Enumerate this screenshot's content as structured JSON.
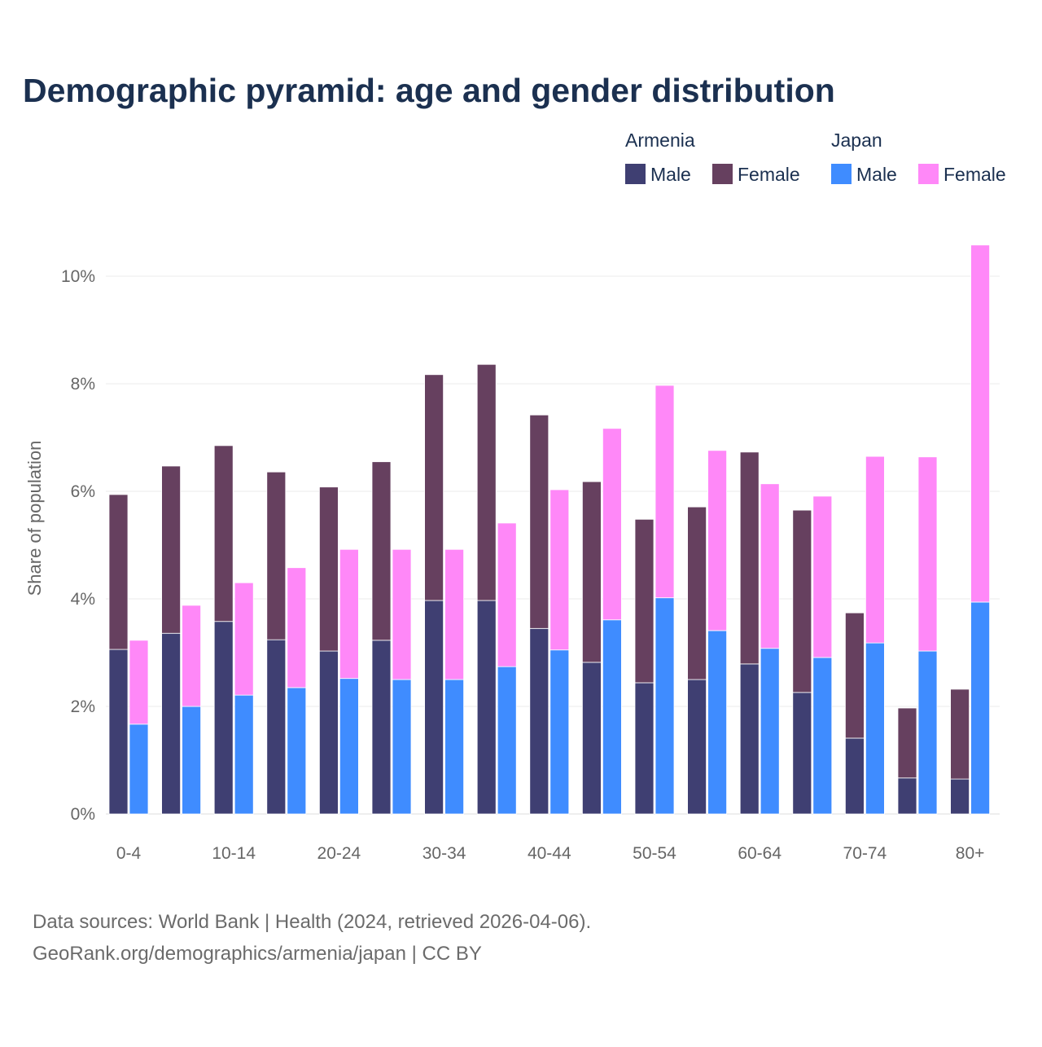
{
  "chart_data": {
    "type": "bar",
    "stacked": true,
    "grouped": true,
    "title": "Demographic pyramid: age and gender distribution",
    "ylabel": "Share of population",
    "xlabel": "",
    "ylim": [
      0,
      10.6
    ],
    "yticks": [
      0,
      2,
      4,
      6,
      8,
      10
    ],
    "ytick_labels": [
      "0%",
      "2%",
      "4%",
      "6%",
      "8%",
      "10%"
    ],
    "grid": true,
    "legend_placement": "top-right",
    "categories": [
      "0-4",
      "5-9",
      "10-14",
      "15-19",
      "20-24",
      "25-29",
      "30-34",
      "35-39",
      "40-44",
      "45-49",
      "50-54",
      "55-59",
      "60-64",
      "65-69",
      "70-74",
      "75-79",
      "80+"
    ],
    "xtick_labels": [
      "0-4",
      "",
      "10-14",
      "",
      "20-24",
      "",
      "30-34",
      "",
      "40-44",
      "",
      "50-54",
      "",
      "60-64",
      "",
      "70-74",
      "",
      "80+"
    ],
    "groups": [
      {
        "name": "Armenia",
        "series": [
          {
            "name": "Male",
            "color": "#3f3f72",
            "values": [
              3.06,
              3.36,
              3.58,
              3.24,
              3.03,
              3.23,
              3.97,
              3.97,
              3.45,
              2.82,
              2.44,
              2.5,
              2.79,
              2.26,
              1.41,
              0.67,
              0.65
            ]
          },
          {
            "name": "Female",
            "color": "#66405f",
            "values": [
              2.88,
              3.11,
              3.27,
              3.12,
              3.05,
              3.32,
              4.2,
              4.39,
              3.97,
              3.36,
              3.04,
              3.21,
              3.94,
              3.39,
              2.33,
              1.3,
              1.67
            ]
          }
        ]
      },
      {
        "name": "Japan",
        "series": [
          {
            "name": "Male",
            "color": "#3f8cff",
            "values": [
              1.67,
              2.0,
              2.21,
              2.35,
              2.52,
              2.5,
              2.5,
              2.74,
              3.05,
              3.61,
              4.02,
              3.41,
              3.08,
              2.91,
              3.18,
              3.03,
              3.94
            ]
          },
          {
            "name": "Female",
            "color": "#ff88f8",
            "values": [
              1.56,
              1.88,
              2.09,
              2.23,
              2.4,
              2.42,
              2.42,
              2.67,
              2.98,
              3.56,
              3.95,
              3.35,
              3.06,
              3.0,
              3.47,
              3.61,
              6.64
            ]
          }
        ]
      }
    ]
  },
  "footer": {
    "source": "Data sources: World Bank | Health (2024, retrieved 2026-04-06).",
    "credit": "GeoRank.org/demographics/armenia/japan | CC BY"
  }
}
